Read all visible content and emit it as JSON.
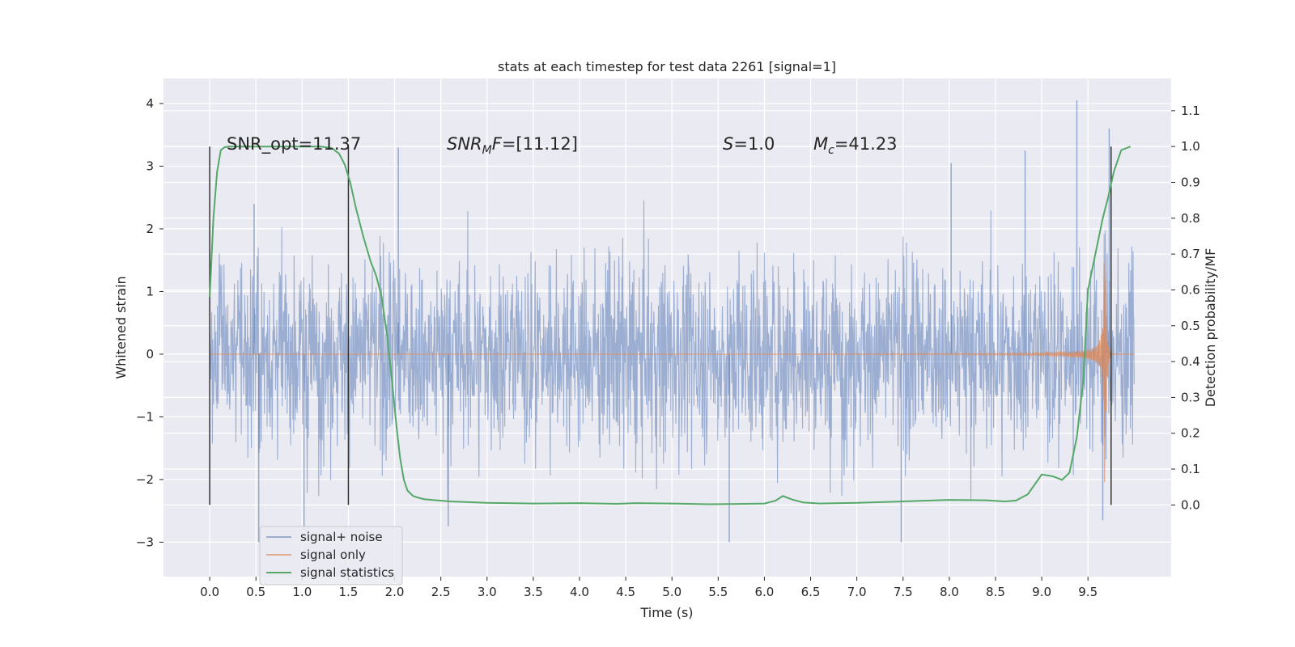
{
  "chart_data": {
    "type": "line",
    "title": "stats at each timestep for test data 2261 [signal=1]",
    "xlabel": "Time (s)",
    "ylabel": "Whitened strain",
    "ylabel_right": "Detection probability/MF",
    "xlim": [
      -0.5,
      10.4
    ],
    "ylim": [
      -3.55,
      4.4
    ],
    "ylim_right": [
      -0.2,
      1.19
    ],
    "xticks": [
      "0.0",
      "0.5",
      "1.0",
      "1.5",
      "2.0",
      "2.5",
      "3.0",
      "3.5",
      "4.0",
      "4.5",
      "5.0",
      "5.5",
      "6.0",
      "6.5",
      "7.0",
      "7.5",
      "8.0",
      "8.5",
      "9.0",
      "9.5"
    ],
    "yticks": [
      "4",
      "3",
      "2",
      "1",
      "0",
      "−1",
      "−2",
      "−3"
    ],
    "yticks_right": [
      "1.1",
      "1.0",
      "0.9",
      "0.8",
      "0.7",
      "0.6",
      "0.5",
      "0.4",
      "0.3",
      "0.2",
      "0.1",
      "0.0"
    ],
    "grid": true,
    "legend_position": "lower-left",
    "annotations": {
      "snr_opt": "SNR_opt=11.37",
      "snr_mf_base": "SNR",
      "snr_mf_sub": "M",
      "snr_mf_rest": "F=[11.12]",
      "s_label": "S",
      "s_value": "=1.0",
      "mc_base": "M",
      "mc_sub": "c",
      "mc_value": "=41.23"
    },
    "series": [
      {
        "name": "signal+ noise",
        "color": "#4c72b0",
        "description": "dense noise band",
        "t_range": [
          0.0,
          10.0
        ],
        "typical_envelope": [
          -1.6,
          1.6
        ],
        "peak_values": [
          {
            "x": 0.48,
            "y": 2.4
          },
          {
            "x": 0.53,
            "y": -3.0
          },
          {
            "x": 1.02,
            "y": -2.8
          },
          {
            "x": 2.04,
            "y": 3.3
          },
          {
            "x": 2.58,
            "y": -2.75
          },
          {
            "x": 5.62,
            "y": -3.0
          },
          {
            "x": 7.48,
            "y": -3.0
          },
          {
            "x": 9.38,
            "y": 4.05
          },
          {
            "x": 9.66,
            "y": -2.65
          },
          {
            "x": 9.73,
            "y": 3.6
          },
          {
            "x": 8.02,
            "y": 3.05
          },
          {
            "x": 8.82,
            "y": 3.25
          }
        ]
      },
      {
        "name": "signal only",
        "color": "#dd8452",
        "description": "chirp",
        "t_range": [
          0.0,
          10.0
        ],
        "merger_time": 9.68,
        "peak_amplitude": 2.5
      },
      {
        "name": "signal statistics",
        "color": "#55a868",
        "axis": "right",
        "x": [
          0.0,
          0.04,
          0.08,
          0.12,
          0.16,
          0.2,
          0.3,
          0.5,
          0.8,
          1.0,
          1.2,
          1.32,
          1.4,
          1.46,
          1.52,
          1.58,
          1.66,
          1.74,
          1.8,
          1.86,
          1.92,
          1.97,
          2.02,
          2.06,
          2.1,
          2.14,
          2.2,
          2.26,
          2.32,
          2.4,
          2.6,
          3.0,
          3.5,
          4.0,
          4.4,
          4.6,
          5.0,
          5.4,
          5.8,
          6.0,
          6.12,
          6.2,
          6.3,
          6.42,
          6.6,
          7.0,
          7.5,
          8.0,
          8.4,
          8.6,
          8.72,
          8.85,
          9.0,
          9.12,
          9.22,
          9.3,
          9.38,
          9.45,
          9.5,
          9.58,
          9.66,
          9.72,
          9.78,
          9.86,
          9.96
        ],
        "values": [
          0.58,
          0.8,
          0.93,
          0.99,
          0.998,
          1.0,
          1.0,
          1.0,
          1.0,
          1.0,
          1.0,
          0.996,
          0.98,
          0.95,
          0.9,
          0.83,
          0.75,
          0.68,
          0.64,
          0.58,
          0.47,
          0.35,
          0.22,
          0.13,
          0.07,
          0.04,
          0.025,
          0.02,
          0.016,
          0.014,
          0.01,
          0.006,
          0.004,
          0.005,
          0.003,
          0.005,
          0.004,
          0.002,
          0.003,
          0.004,
          0.012,
          0.025,
          0.015,
          0.007,
          0.004,
          0.006,
          0.01,
          0.014,
          0.013,
          0.01,
          0.012,
          0.03,
          0.085,
          0.08,
          0.07,
          0.09,
          0.19,
          0.35,
          0.6,
          0.7,
          0.8,
          0.86,
          0.93,
          0.99,
          1.0
        ]
      }
    ],
    "vertical_markers": [
      0.0,
      1.5,
      9.75
    ]
  }
}
